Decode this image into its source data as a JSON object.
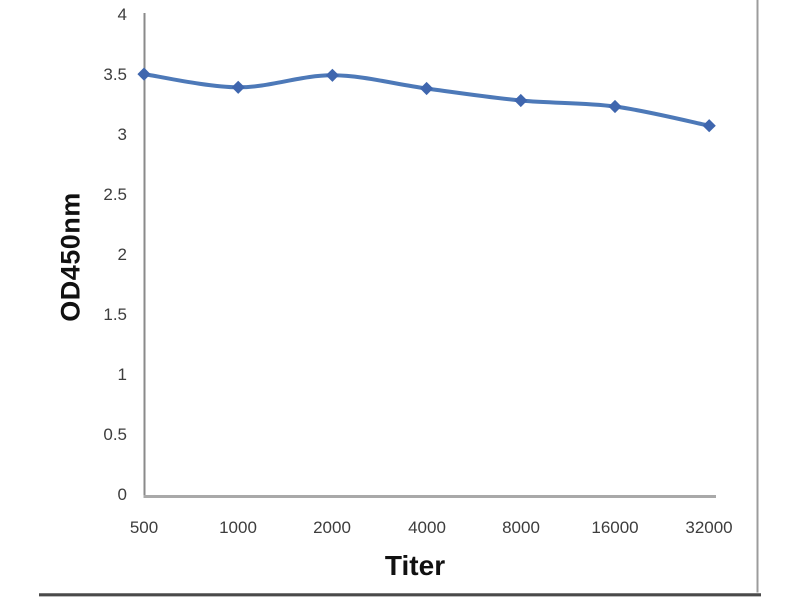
{
  "page": {
    "background": "#ffffff"
  },
  "chart_data": {
    "type": "line",
    "title": "",
    "xlabel": "Titer",
    "ylabel": "OD450nm",
    "categories": [
      "500",
      "1000",
      "2000",
      "4000",
      "8000",
      "16000",
      "32000"
    ],
    "series": [
      {
        "name": "OD450nm",
        "values": [
          3.52,
          3.41,
          3.51,
          3.4,
          3.3,
          3.25,
          3.09
        ]
      }
    ],
    "ylim": [
      0,
      4
    ],
    "y_tick_step": 0.5,
    "y_tick_labels": [
      "4",
      "3.5",
      "3",
      "2.5",
      "2",
      "1.5",
      "1",
      "0.5",
      "0"
    ],
    "grid": "off",
    "legend": "none",
    "marker": "diamond",
    "line_color": "#4d79b8",
    "marker_color": "#3f66ae",
    "y_axis_color": "#8a8a8a",
    "x_axis_color": "#a9a9a9",
    "frame_right_color": "#9c9c9c",
    "frame_bottom_color": "#4a4a4a",
    "tick_label_color": "#3d3d3d"
  }
}
